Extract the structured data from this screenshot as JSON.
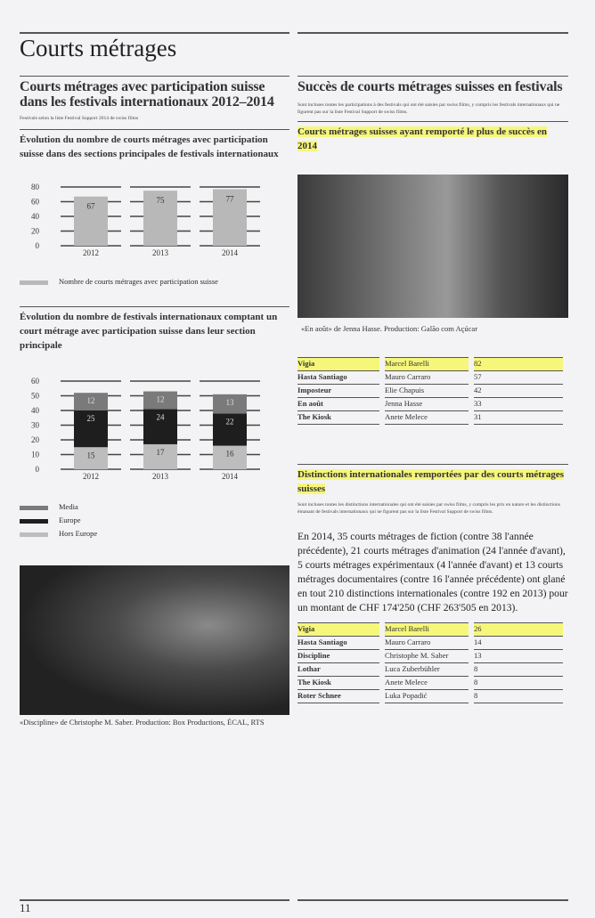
{
  "page_title": "Courts métrages",
  "left": {
    "section_title": "Courts métrages avec participation suisse dans les festivals internationaux 2012–2014",
    "section_note": "Festivals selon la liste Festival Support 2014 de swiss films",
    "chart1_title": "Évolution du nombre de courts métrages avec participation suisse dans des sections principales de festivals internationaux",
    "chart2_title": "Évolution du nombre de festivals internationaux comptant un court métrage avec participation suisse dans leur section principale",
    "photo_caption": "«Discipline» de Christophe M. Saber. Production: Box Productions, ÉCAL, RTS"
  },
  "chart_data": [
    {
      "type": "bar",
      "categories": [
        "2012",
        "2013",
        "2014"
      ],
      "series": [
        {
          "name": "Nombre de courts métrages avec participation suisse",
          "values": [
            67,
            75,
            77
          ]
        }
      ],
      "ylim": [
        0,
        80
      ],
      "yticks": [
        0,
        20,
        40,
        60,
        80
      ],
      "grid": true,
      "legend": "bottom",
      "colors": [
        "#b8b8b8"
      ]
    },
    {
      "type": "bar",
      "stacked": true,
      "categories": [
        "2012",
        "2013",
        "2014"
      ],
      "series": [
        {
          "name": "Hors Europe",
          "values": [
            15,
            17,
            16
          ]
        },
        {
          "name": "Europe",
          "values": [
            25,
            24,
            22
          ]
        },
        {
          "name": "Media",
          "values": [
            12,
            12,
            13
          ]
        }
      ],
      "ylim": [
        0,
        60
      ],
      "yticks": [
        0,
        10,
        20,
        30,
        40,
        50,
        60
      ],
      "grid": true,
      "legend": "bottom",
      "colors": [
        "#bdbdbd",
        "#1e1e1e",
        "#7a7a7a"
      ]
    }
  ],
  "right": {
    "section_title": "Succès de courts métrages suisses en festivals",
    "section_note": "Sont incluses toutes les participations à des festivals qui ont été saisies par swiss films, y compris les festivals internationaux qui ne figurent pas sur la liste Festival Support de swiss films.",
    "table1_title": "Courts métrages suisses ayant remporté le plus de succès en 2014",
    "photo_caption": "«En août» de Jenna Hasse. Production: Galão com Açúcar",
    "table1": [
      [
        "Vigia",
        "Marcel Barelli",
        "82"
      ],
      [
        "Hasta Santiago",
        "Mauro Carraro",
        "57"
      ],
      [
        "Imposteur",
        "Elie Chapuis",
        "42"
      ],
      [
        "En août",
        "Jenna Hasse",
        "33"
      ],
      [
        "The Kiosk",
        "Anete Melece",
        "31"
      ]
    ],
    "table2_title": "Distinctions internationales remportées par des courts métrages suisses",
    "table2_note": "Sont incluses toutes les distinctions internationales qui ont été saisies par swiss films, y compris les prix en nature et les distinctions émanant de festivals internationaux qui ne figurent pas sur la liste Festival Support de swiss films.",
    "body": "En 2014, 35 courts métrages de fiction (contre 38 l'année précédente), 21 courts métrages d'animation (24 l'année d'avant), 5 courts métrages expérimentaux (4 l'année d'avant) et 13 courts métrages documentaires (contre 16 l'année précédente) ont glané en tout 210 distinctions internationales (contre 192 en 2013) pour un montant de CHF 174'250 (CHF 263'505 en 2013).",
    "table2": [
      [
        "Vigia",
        "Marcel Barelli",
        "26"
      ],
      [
        "Hasta Santiago",
        "Mauro Carraro",
        "14"
      ],
      [
        "Discipline",
        "Christophe M. Saber",
        "13"
      ],
      [
        "Lothar",
        "Luca Zuberbühler",
        "8"
      ],
      [
        "The Kiosk",
        "Anete Melece",
        "8"
      ],
      [
        "Roter Schnee",
        "Luka Popadić",
        "8"
      ]
    ]
  },
  "page_number": "11"
}
